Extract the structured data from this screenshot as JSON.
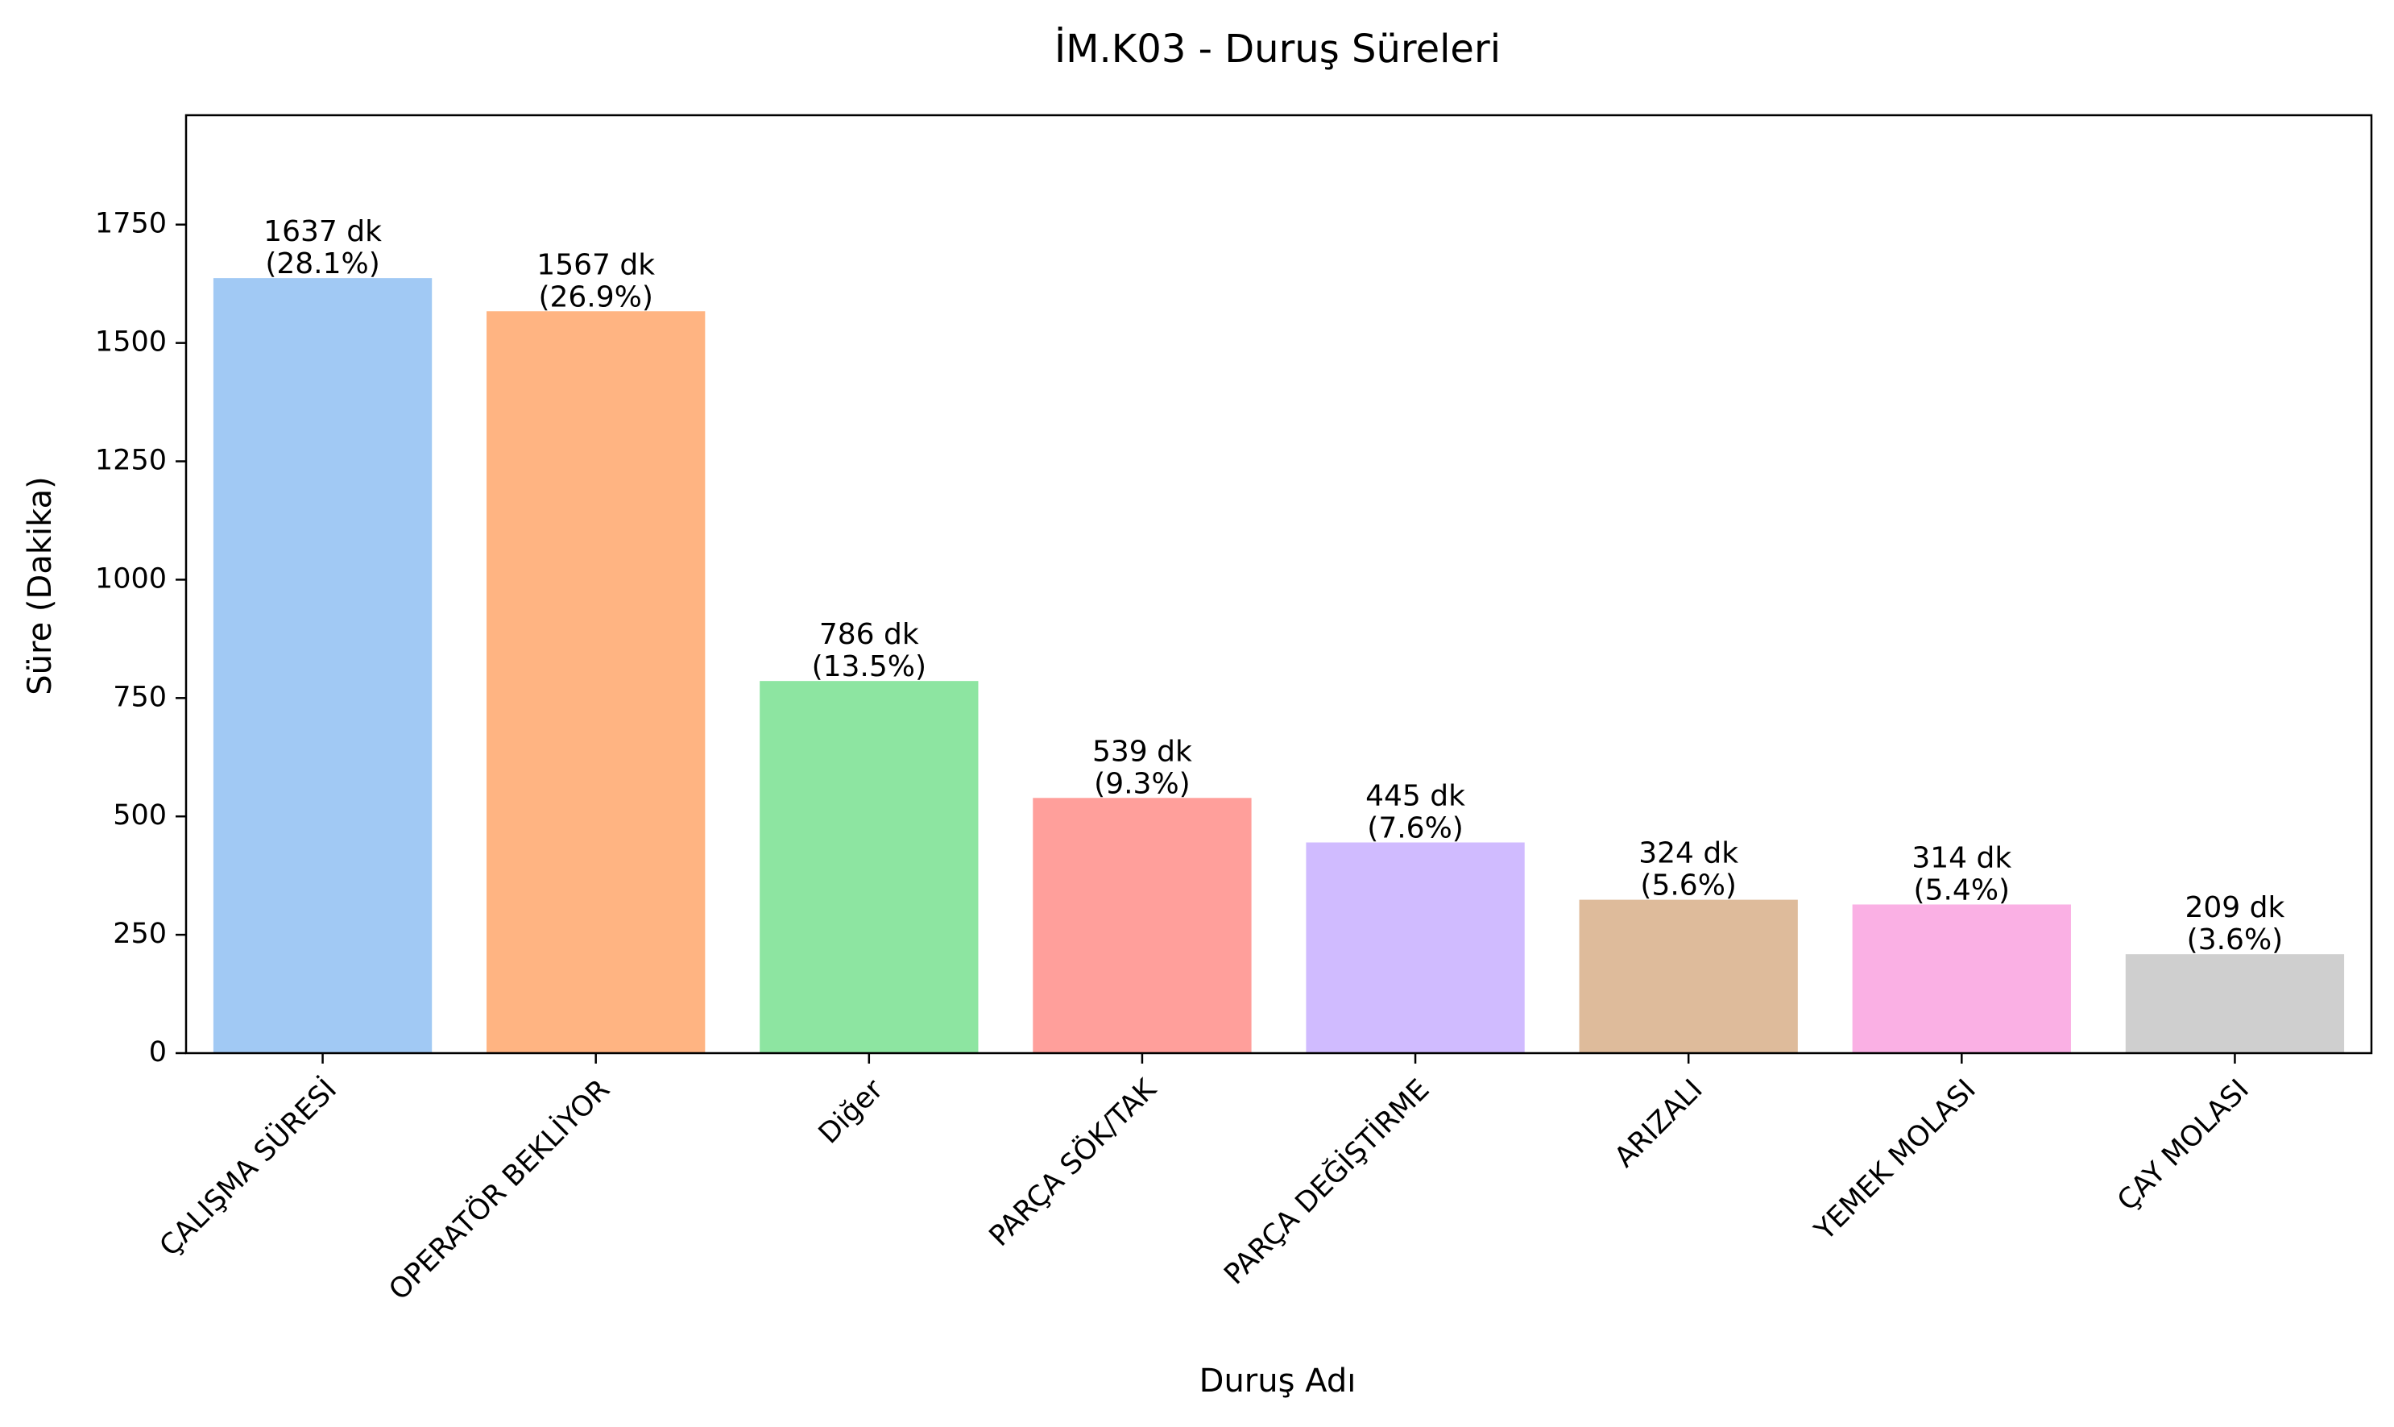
{
  "chart_data": {
    "type": "bar",
    "title": "İM.K03 - Duruş Süreleri",
    "xlabel": "Duruş Adı",
    "ylabel": "Süre (Dakika)",
    "ylim": [
      0,
      1981
    ],
    "yticks": [
      "0",
      "250",
      "500",
      "750",
      "1000",
      "1250",
      "1500",
      "1750"
    ],
    "grid": false,
    "categories": [
      "ÇALIŞMA SÜRESİ",
      "OPERATÖR BEKLİYOR",
      "Diğer",
      "PARÇA SÖK/TAK",
      "PARÇA DEĞİŞTİRME",
      "ARIZALI",
      "YEMEK MOLASI",
      "ÇAY MOLASI"
    ],
    "values": [
      1637,
      1567,
      786,
      539,
      445,
      324,
      314,
      209
    ],
    "value_labels": [
      "1637 dk",
      "1567 dk",
      "786 dk",
      "539 dk",
      "445 dk",
      "324 dk",
      "314 dk",
      "209 dk"
    ],
    "percent_labels": [
      "(28.1%)",
      "(26.9%)",
      "(13.5%)",
      "(9.3%)",
      "(7.6%)",
      "(5.6%)",
      "(5.4%)",
      "(3.6%)"
    ],
    "colors": [
      "#a1c9f4",
      "#ffb482",
      "#8de5a1",
      "#ff9f9b",
      "#d0bbff",
      "#debb9b",
      "#fab0e4",
      "#cfcfcf"
    ]
  }
}
